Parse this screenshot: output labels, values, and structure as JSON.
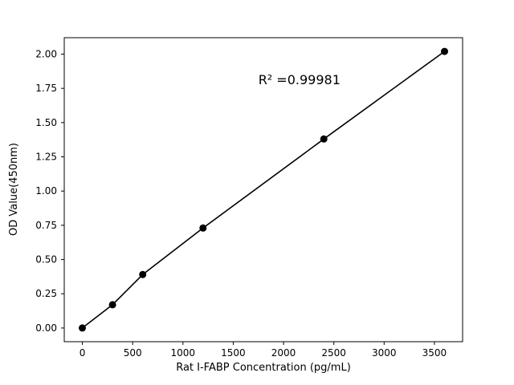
{
  "chart_data": {
    "type": "scatter",
    "title": "",
    "xlabel": "Rat I-FABP Concentration (pg/mL)",
    "ylabel": "OD Value(450nm)",
    "x": [
      0,
      300,
      600,
      1200,
      2400,
      3600
    ],
    "y": [
      0.0,
      0.17,
      0.39,
      0.73,
      1.38,
      2.02
    ],
    "fit_line": true,
    "annotation": {
      "text": "R² =0.99981",
      "x": 1750,
      "y": 1.78
    },
    "x_ticks": [
      0,
      500,
      1000,
      1500,
      2000,
      2500,
      3000,
      3500
    ],
    "y_ticks": [
      0.0,
      0.25,
      0.5,
      0.75,
      1.0,
      1.25,
      1.5,
      1.75,
      2.0
    ],
    "xlim": [
      -180,
      3780
    ],
    "ylim": [
      -0.1,
      2.12
    ],
    "grid": false,
    "legend_position": "none",
    "marker_color": "#000000",
    "line_color": "#000000",
    "background_color": "#ffffff"
  }
}
